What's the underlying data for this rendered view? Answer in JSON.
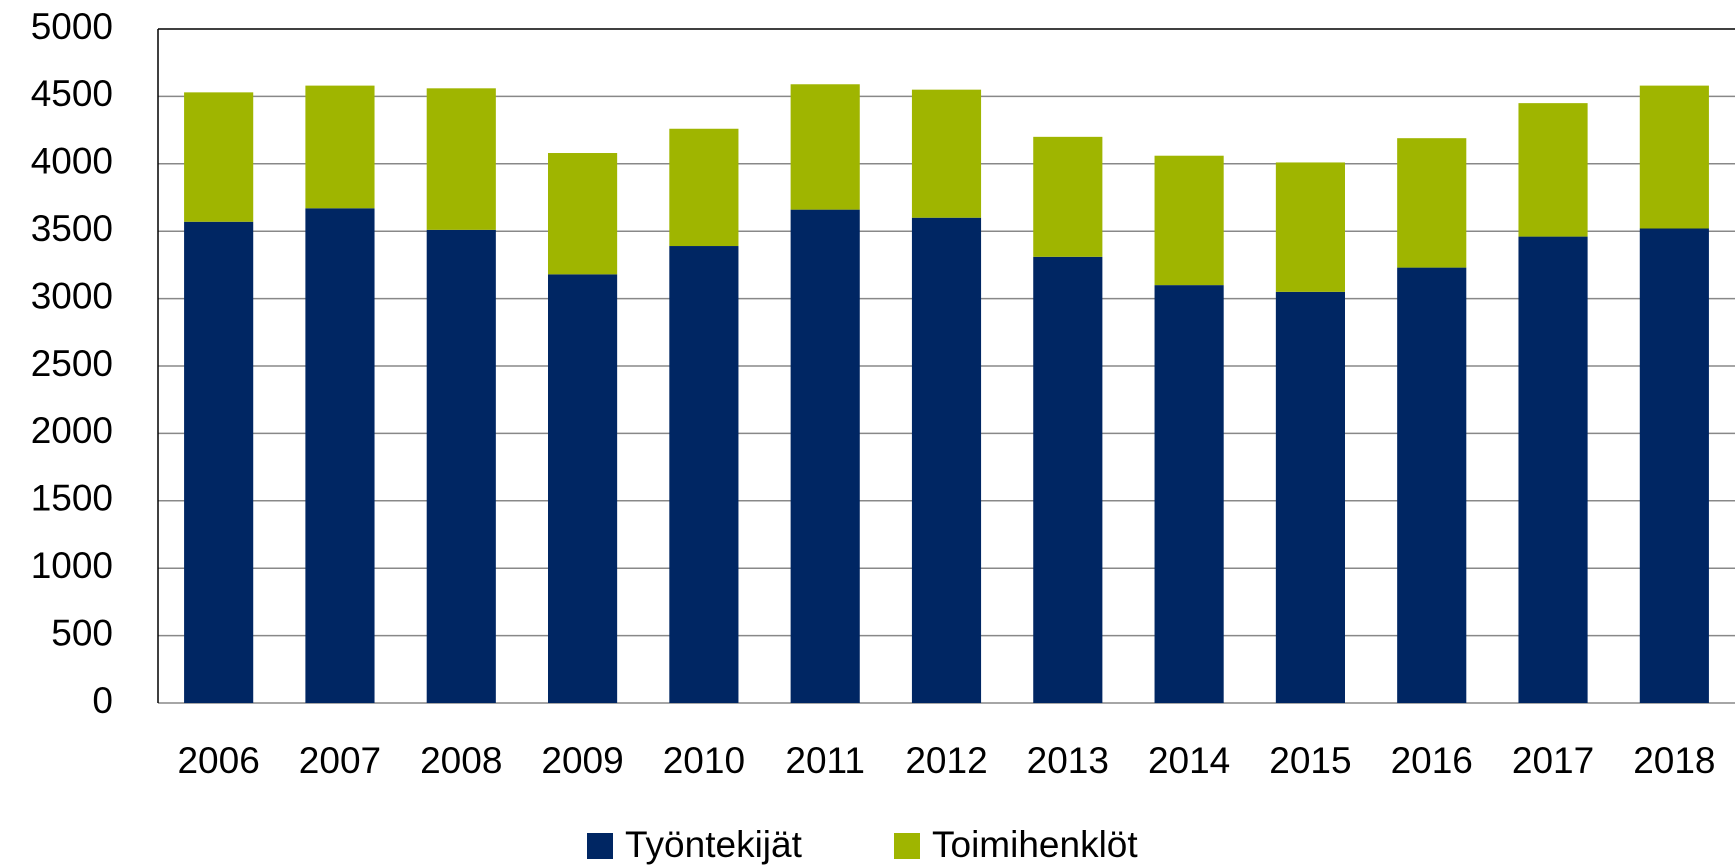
{
  "chart_data": {
    "type": "stacked_bar",
    "categories": [
      "2006",
      "2007",
      "2008",
      "2009",
      "2010",
      "2011",
      "2012",
      "2013",
      "2014",
      "2015",
      "2016",
      "2017",
      "2018"
    ],
    "series": [
      {
        "name": "Työntekijät",
        "color": "#002663",
        "values": [
          3570,
          3670,
          3510,
          3180,
          3390,
          3660,
          3600,
          3310,
          3100,
          3050,
          3230,
          3460,
          3520
        ]
      },
      {
        "name": "Toimihenklöt",
        "color": "#9fb500",
        "values": [
          960,
          910,
          1050,
          900,
          870,
          930,
          950,
          890,
          960,
          960,
          960,
          990,
          1060
        ]
      }
    ],
    "ylim": [
      0,
      5000
    ],
    "yticks": [
      0,
      500,
      1000,
      1500,
      2000,
      2500,
      3000,
      3500,
      4000,
      4500,
      5000
    ],
    "grid": true,
    "legend": "bottom"
  }
}
